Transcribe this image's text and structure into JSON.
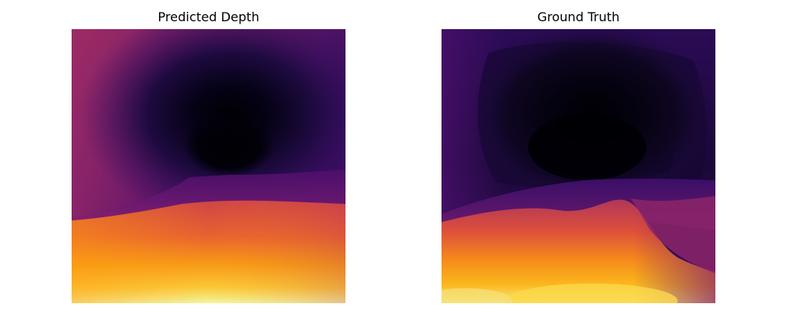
{
  "panels": [
    {
      "title": "Predicted Depth",
      "colormap": "inferno"
    },
    {
      "title": "Ground Truth",
      "colormap": "inferno"
    }
  ],
  "colors": {
    "background": "#ffffff",
    "inferno_black": "#000004",
    "inferno_dark_purple": "#2a0b52",
    "inferno_purple": "#56106e",
    "inferno_magenta": "#9a2865",
    "inferno_red": "#c83c4f",
    "inferno_orange": "#f07f26",
    "inferno_yellow": "#fbb21a",
    "inferno_pale": "#fcffa4"
  }
}
